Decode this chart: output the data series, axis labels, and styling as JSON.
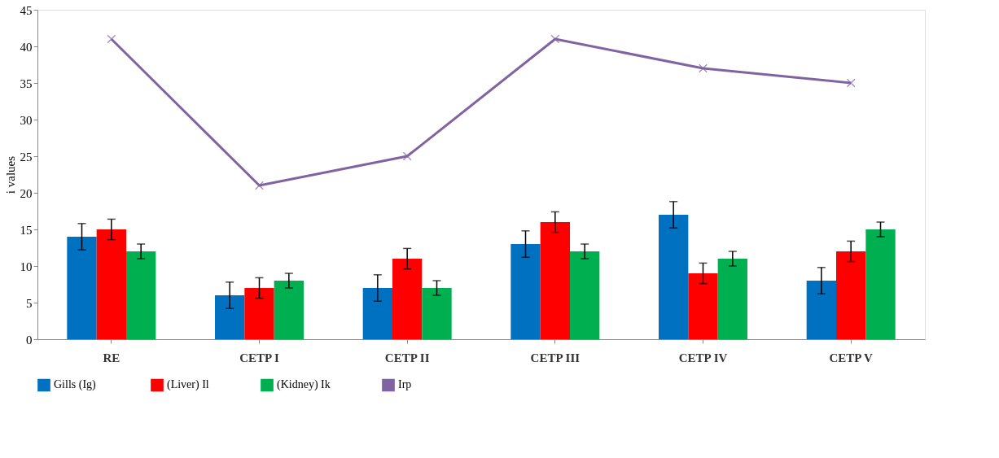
{
  "chart_data": {
    "type": "bar",
    "ylabel": "i values",
    "categories": [
      "RE",
      "CETP I",
      "CETP II",
      "CETP III",
      "CETP IV",
      "CETP V"
    ],
    "series": [
      {
        "name": "Gills  (Ig)",
        "color": "#0070c0",
        "values": [
          14,
          6,
          7,
          13,
          17,
          8
        ],
        "errors": [
          1.8,
          1.8,
          1.8,
          1.8,
          1.8,
          1.8
        ]
      },
      {
        "name": "(Liver) Il",
        "color": "#ff0000",
        "values": [
          15,
          7,
          11,
          16,
          9,
          12
        ],
        "errors": [
          1.4,
          1.4,
          1.4,
          1.4,
          1.4,
          1.4
        ]
      },
      {
        "name": "(Kidney) Ik",
        "color": "#00b050",
        "values": [
          12,
          8,
          7,
          12,
          11,
          15
        ],
        "errors": [
          1.0,
          1.0,
          1.0,
          1.0,
          1.0,
          1.0
        ]
      },
      {
        "name": "Irp",
        "type": "line",
        "color": "#8064a2",
        "values": [
          41,
          21,
          25,
          41,
          37,
          35
        ]
      }
    ],
    "ylim": [
      0,
      45
    ],
    "yticks": [
      0,
      5,
      10,
      15,
      20,
      25,
      30,
      35,
      40,
      45
    ],
    "grid": false,
    "legend": "bottom",
    "marker": "cross",
    "line_style": "solid"
  }
}
